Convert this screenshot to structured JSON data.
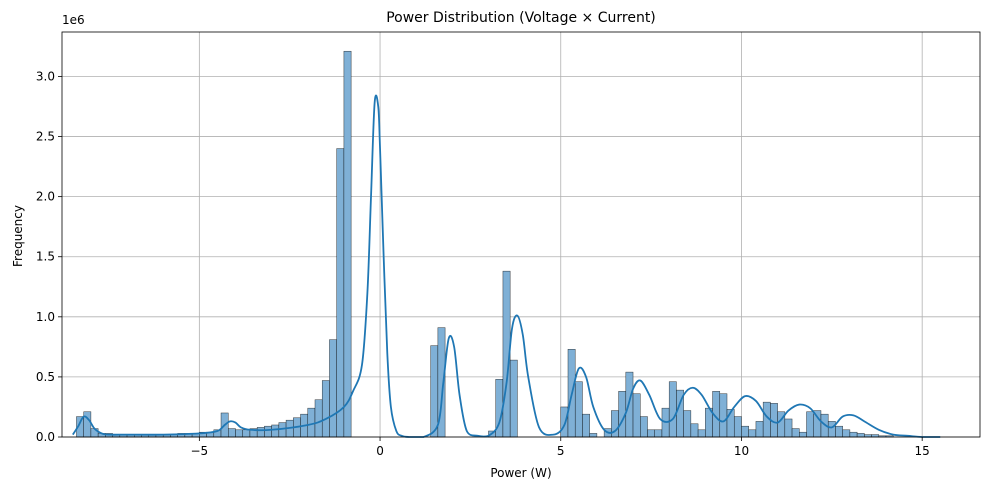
{
  "chart_data": {
    "type": "histogram",
    "title": "Power Distribution (Voltage × Current)",
    "xlabel": "Power (W)",
    "ylabel": "Frequency",
    "y_scale_label": "1e6",
    "xlim": [
      -8.8,
      16.6
    ],
    "ylim": [
      0,
      3.37
    ],
    "x_ticks": [
      -5,
      0,
      5,
      10,
      15
    ],
    "x_tick_labels": [
      "−5",
      "0",
      "5",
      "10",
      "15"
    ],
    "y_ticks": [
      0,
      0.5,
      1.0,
      1.5,
      2.0,
      2.5,
      3.0
    ],
    "y_tick_labels": [
      "0.0",
      "0.5",
      "1.0",
      "1.5",
      "2.0",
      "2.5",
      "3.0"
    ],
    "grid": true,
    "series_color": "#1f77b4",
    "bar_color": "#7fb0d6",
    "bin_start": -8.6,
    "bin_width": 0.2,
    "frequencies_millions": [
      0.0,
      0.17,
      0.21,
      0.07,
      0.03,
      0.03,
      0.02,
      0.02,
      0.02,
      0.02,
      0.02,
      0.02,
      0.02,
      0.02,
      0.02,
      0.03,
      0.03,
      0.03,
      0.04,
      0.04,
      0.06,
      0.2,
      0.07,
      0.06,
      0.06,
      0.07,
      0.08,
      0.09,
      0.1,
      0.12,
      0.14,
      0.16,
      0.19,
      0.24,
      0.31,
      0.47,
      0.81,
      2.4,
      3.21,
      0.0,
      0.0,
      0.0,
      0.0,
      0.0,
      0.0,
      0.0,
      0.0,
      0.0,
      0.0,
      0.0,
      0.76,
      0.91,
      0.0,
      0.0,
      0.0,
      0.0,
      0.0,
      0.0,
      0.05,
      0.48,
      1.38,
      0.64,
      0.0,
      0.0,
      0.0,
      0.0,
      0.0,
      0.0,
      0.25,
      0.73,
      0.46,
      0.19,
      0.03,
      0.0,
      0.07,
      0.22,
      0.38,
      0.54,
      0.36,
      0.17,
      0.06,
      0.06,
      0.24,
      0.46,
      0.39,
      0.22,
      0.11,
      0.06,
      0.24,
      0.38,
      0.36,
      0.23,
      0.17,
      0.09,
      0.06,
      0.13,
      0.29,
      0.28,
      0.21,
      0.15,
      0.07,
      0.04,
      0.21,
      0.22,
      0.19,
      0.13,
      0.09,
      0.06,
      0.04,
      0.03,
      0.02,
      0.02,
      0.01,
      0.01,
      0.0,
      0.0,
      0.0,
      0.0,
      0.0,
      0.0,
      0.0,
      0.0
    ],
    "kde_x": [
      -8.5,
      -8.35,
      -8.2,
      -8.05,
      -7.9,
      -7.7,
      -7.5,
      -7.0,
      -6.0,
      -5.0,
      -4.5,
      -4.3,
      -4.15,
      -4.0,
      -3.85,
      -3.6,
      -3.0,
      -2.0,
      -1.5,
      -1.0,
      -0.75,
      -0.5,
      -0.35,
      -0.25,
      -0.15,
      -0.05,
      0.0,
      0.1,
      0.2,
      0.3,
      0.45,
      0.6,
      0.8,
      1.2,
      1.6,
      1.75,
      1.9,
      2.05,
      2.2,
      2.4,
      2.7,
      3.0,
      3.3,
      3.5,
      3.65,
      3.8,
      3.95,
      4.1,
      4.4,
      4.8,
      5.1,
      5.3,
      5.5,
      5.7,
      5.9,
      6.2,
      6.5,
      6.8,
      7.0,
      7.2,
      7.45,
      7.75,
      8.1,
      8.4,
      8.65,
      8.9,
      9.2,
      9.5,
      9.8,
      10.1,
      10.4,
      10.7,
      11.0,
      11.3,
      11.6,
      11.9,
      12.2,
      12.5,
      12.8,
      13.1,
      13.4,
      13.8,
      14.2,
      14.6,
      15.0,
      15.5
    ],
    "kde_y": [
      0.02,
      0.09,
      0.17,
      0.14,
      0.07,
      0.03,
      0.02,
      0.02,
      0.02,
      0.03,
      0.05,
      0.1,
      0.13,
      0.12,
      0.08,
      0.06,
      0.06,
      0.1,
      0.15,
      0.25,
      0.38,
      0.6,
      1.2,
      2.0,
      2.78,
      2.75,
      2.4,
      1.5,
      0.7,
      0.25,
      0.05,
      0.01,
      0.0,
      0.0,
      0.1,
      0.45,
      0.82,
      0.75,
      0.35,
      0.05,
      0.01,
      0.01,
      0.12,
      0.45,
      0.9,
      1.01,
      0.85,
      0.5,
      0.08,
      0.02,
      0.1,
      0.35,
      0.57,
      0.5,
      0.25,
      0.06,
      0.05,
      0.2,
      0.4,
      0.47,
      0.35,
      0.15,
      0.15,
      0.35,
      0.41,
      0.35,
      0.2,
      0.13,
      0.25,
      0.34,
      0.3,
      0.17,
      0.12,
      0.22,
      0.27,
      0.24,
      0.13,
      0.08,
      0.17,
      0.18,
      0.13,
      0.06,
      0.02,
      0.01,
      0.0,
      0.0
    ]
  }
}
